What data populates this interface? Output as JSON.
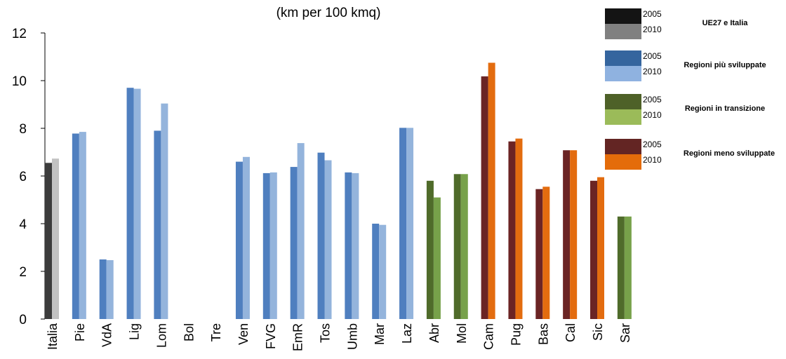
{
  "chart_data": {
    "type": "bar",
    "title": "(km per 100 kmq)",
    "ylim": [
      0,
      12
    ],
    "yticks": [
      0,
      2,
      4,
      6,
      8,
      10,
      12
    ],
    "grid": false,
    "legend_position": "top-right",
    "categories": [
      "Italia",
      "Pie",
      "VdA",
      "Lig",
      "Lom",
      "Bol",
      "Tre",
      "Ven",
      "FVG",
      "EmR",
      "Tos",
      "Umb",
      "Mar",
      "Laz",
      "Abr",
      "Mol",
      "Cam",
      "Pug",
      "Bas",
      "Cal",
      "Sic",
      "Sar"
    ],
    "category_group": [
      "ue",
      "dev",
      "dev",
      "dev",
      "dev",
      "dev",
      "dev",
      "dev",
      "dev",
      "dev",
      "dev",
      "dev",
      "dev",
      "dev",
      "trans",
      "trans",
      "less",
      "less",
      "less",
      "less",
      "less",
      "trans"
    ],
    "series": [
      {
        "name": "2005",
        "values": [
          6.55,
          7.78,
          2.5,
          9.7,
          7.9,
          null,
          null,
          6.6,
          6.12,
          6.38,
          6.98,
          6.15,
          4.0,
          8.02,
          5.8,
          6.08,
          10.18,
          7.45,
          5.45,
          7.08,
          5.8,
          4.3
        ]
      },
      {
        "name": "2010",
        "values": [
          6.73,
          7.85,
          2.47,
          9.66,
          9.04,
          null,
          null,
          6.8,
          6.15,
          7.38,
          6.66,
          6.12,
          3.95,
          8.02,
          5.1,
          6.08,
          10.75,
          7.57,
          5.55,
          7.08,
          5.95,
          4.3
        ]
      }
    ],
    "groups": {
      "ue": {
        "label": "UE27 e Italia",
        "colors": [
          "#3c3c3c",
          "#c2c2c2"
        ]
      },
      "dev": {
        "label": "Regioni più sviluppate",
        "colors": [
          "#4f7fbf",
          "#94b4dc"
        ]
      },
      "trans": {
        "label": "Regioni in transizione",
        "colors": [
          "#4f6b2a",
          "#77a14a"
        ]
      },
      "less": {
        "label": "Regioni meno sviluppate",
        "colors": [
          "#6b2424",
          "#e36c0f"
        ]
      }
    },
    "legend": [
      {
        "label": "UE27 e Italia",
        "years": [
          "2005",
          "2010"
        ],
        "colors": [
          "#141414",
          "#808080"
        ]
      },
      {
        "label": "Regioni più sviluppate",
        "years": [
          "2005",
          "2010"
        ],
        "colors": [
          "#35659e",
          "#8fb2e0"
        ]
      },
      {
        "label": "Regioni in transizione",
        "years": [
          "2005",
          "2010"
        ],
        "colors": [
          "#4e6128",
          "#9bbb59"
        ]
      },
      {
        "label": "Regioni meno sviluppate",
        "years": [
          "2005",
          "2010"
        ],
        "colors": [
          "#632523",
          "#e46c0a"
        ]
      }
    ]
  }
}
